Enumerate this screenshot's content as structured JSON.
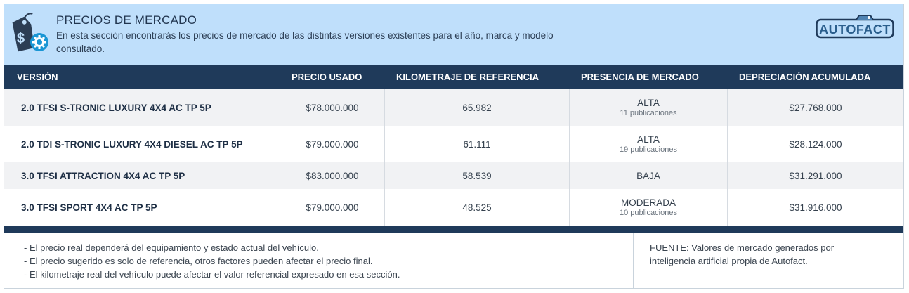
{
  "header": {
    "title": "PRECIOS DE MERCADO",
    "description": "En esta sección encontrarás los precios de mercado de las distintas versiones existentes para el año, marca y modelo consultado.",
    "icon": "price-tag-gear-icon",
    "logo_text": "AUTOFACT"
  },
  "table": {
    "columns": [
      "VERSIÓN",
      "PRECIO USADO",
      "KILOMETRAJE DE REFERENCIA",
      "PRESENCIA DE MERCADO",
      "DEPRECIACIÓN ACUMULADA"
    ],
    "rows": [
      {
        "version": "2.0 TFSI S-TRONIC LUXURY 4X4 AC TP 5P",
        "precio": "$78.000.000",
        "km": "65.982",
        "presencia": "ALTA",
        "publicaciones": "11 publicaciones",
        "depreciacion": "$27.768.000"
      },
      {
        "version": "2.0 TDI S-TRONIC LUXURY 4X4 DIESEL AC TP 5P",
        "precio": "$79.000.000",
        "km": "61.111",
        "presencia": "ALTA",
        "publicaciones": "19 publicaciones",
        "depreciacion": "$28.124.000"
      },
      {
        "version": "3.0 TFSI ATTRACTION 4X4 AC TP 5P",
        "precio": "$83.000.000",
        "km": "58.539",
        "presencia": "BAJA",
        "publicaciones": "",
        "depreciacion": "$31.291.000"
      },
      {
        "version": "3.0 TFSI SPORT 4X4 AC TP 5P",
        "precio": "$79.000.000",
        "km": "48.525",
        "presencia": "MODERADA",
        "publicaciones": "10 publicaciones",
        "depreciacion": "$31.916.000"
      }
    ]
  },
  "notes": [
    "- El precio real dependerá del equipamiento y estado actual del vehículo.",
    "- El precio sugerido es solo de referencia, otros factores pueden afectar el precio final.",
    "- El kilometraje real del vehículo puede afectar el valor referencial expresado en esa sección."
  ],
  "fuente": "FUENTE: Valores de mercado generados por inteligencia artificial propia de Autofact.",
  "colors": {
    "header_bg": "#bfdffb",
    "table_header": "#1f3a5a",
    "row_alt": "#f1f2f4",
    "icon_dark": "#2c3e55",
    "icon_accent": "#1a96d4"
  }
}
